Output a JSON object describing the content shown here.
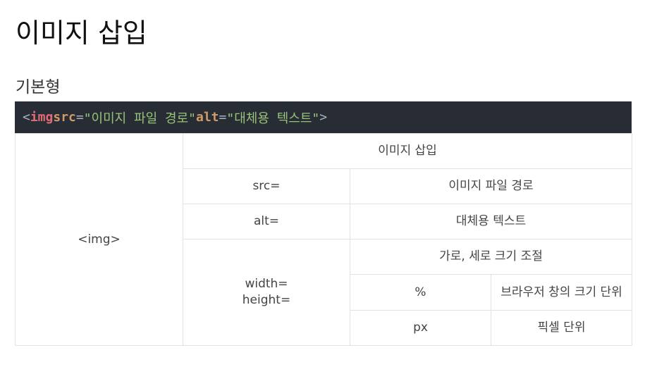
{
  "title": "이미지 삽입",
  "section_heading": "기본형",
  "code": {
    "open": "<",
    "tag": "img",
    "attr1": "src",
    "eq": "=",
    "val1": "\"이미지 파일 경로\"",
    "attr2": "alt",
    "val2": "\"대체용 텍스트\"",
    "close": ">",
    "colors": {
      "background": "#282c34",
      "tag": "#e06c75",
      "attribute": "#d19a66",
      "string": "#98c379",
      "punctuation": "#abb2bf"
    }
  },
  "table": {
    "element": "<img>",
    "description": "이미지 삽입",
    "src_attr": "src=",
    "src_desc": "이미지 파일 경로",
    "alt_attr": "alt=",
    "alt_desc": "대체용 텍스트",
    "size_attr_line1": "width=",
    "size_attr_line2": "height=",
    "size_desc": "가로, 세로 크기 조절",
    "unit_percent": "%",
    "unit_percent_desc": "브라우저 창의 크기 단위",
    "unit_px": "px",
    "unit_px_desc": "픽셀 단위"
  }
}
